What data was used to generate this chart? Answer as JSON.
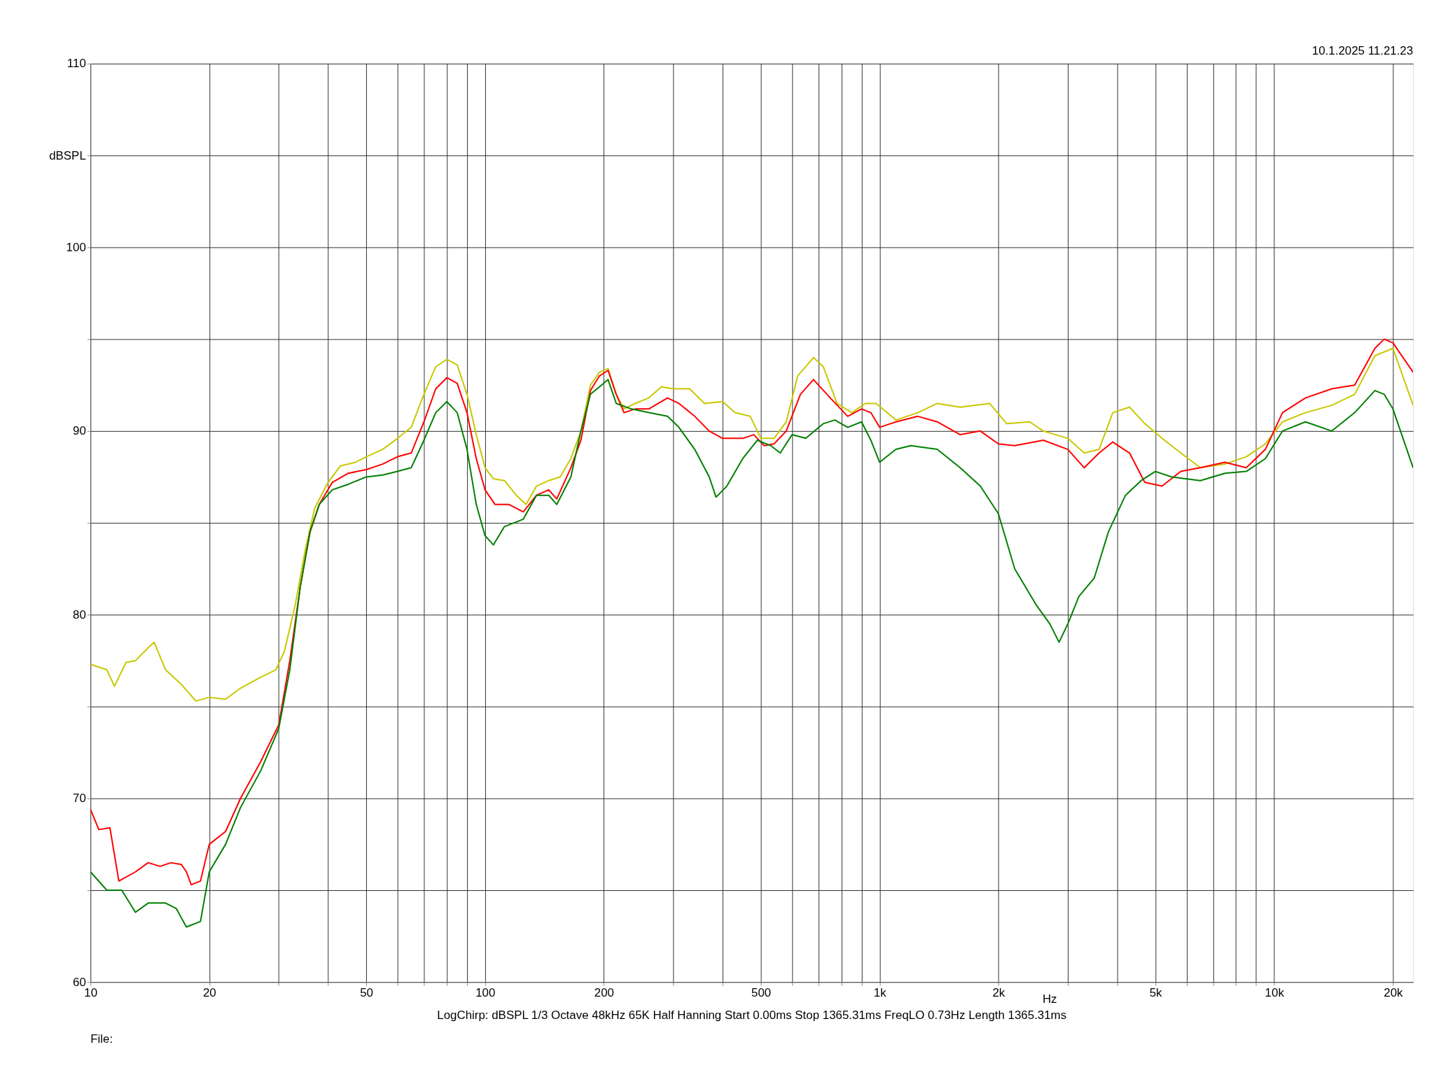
{
  "chart_data": {
    "type": "line",
    "xlabel": "Hz",
    "annotations": [
      "10.1.2025 11.21.23",
      "LogChirp:  dBSPL   1/3 Octave   48kHz   65K   Half Hanning   Start 0.00ms    Stop 1365.31ms    FreqLO 0.73Hz    Length 1365.31ms",
      "File:"
    ],
    "log": "x",
    "grid": true,
    "xlim": [
      10,
      22500
    ],
    "ylim": [
      60,
      110
    ],
    "xticks": [
      10,
      {
        "value": 20,
        "label": "20"
      },
      {
        "value": 30,
        "label": null
      },
      {
        "value": 40,
        "label": null
      },
      50,
      {
        "value": 60,
        "label": null
      },
      {
        "value": 70,
        "label": null
      },
      {
        "value": 80,
        "label": null
      },
      {
        "value": 90,
        "label": null
      },
      100,
      200,
      {
        "value": 300,
        "label": null
      },
      {
        "value": 400,
        "label": null
      },
      500,
      {
        "value": 600,
        "label": null
      },
      {
        "value": 700,
        "label": null
      },
      {
        "value": 800,
        "label": null
      },
      {
        "value": 900,
        "label": null
      },
      {
        "value": 1000,
        "label": "1k"
      },
      {
        "value": 2000,
        "label": "2k"
      },
      {
        "value": 3000,
        "label": null
      },
      {
        "value": 4000,
        "label": null
      },
      {
        "value": 5000,
        "label": "5k"
      },
      {
        "value": 6000,
        "label": null
      },
      {
        "value": 7000,
        "label": null
      },
      {
        "value": 8000,
        "label": null
      },
      {
        "value": 9000,
        "label": null
      },
      {
        "value": 10000,
        "label": "10k"
      },
      {
        "value": 20000,
        "label": "20k"
      }
    ],
    "yticks": [
      60,
      {
        "value": 65,
        "label": null
      },
      70,
      {
        "value": 75,
        "label": null
      },
      80,
      {
        "value": 85,
        "label": null
      },
      90,
      {
        "value": 95,
        "label": null
      },
      100,
      {
        "value": 105,
        "label": "dBSPL"
      },
      110
    ],
    "series": [
      {
        "color": "#c8c800",
        "x": [
          10,
          11,
          11.5,
          12.3,
          13,
          14,
          14.5,
          15.5,
          17,
          18.5,
          20,
          22,
          24,
          27,
          29.5,
          31,
          33,
          35,
          37,
          40,
          43,
          47,
          50,
          55,
          60,
          65,
          70,
          75,
          80,
          85,
          90,
          95,
          100,
          105,
          112,
          120,
          127,
          135,
          145,
          155,
          165,
          175,
          185,
          195,
          205,
          215,
          225,
          240,
          260,
          280,
          300,
          330,
          360,
          400,
          430,
          470,
          500,
          540,
          580,
          620,
          680,
          720,
          780,
          850,
          920,
          980,
          1100,
          1250,
          1400,
          1600,
          1900,
          2100,
          2400,
          2600,
          3000,
          3300,
          3600,
          3900,
          4300,
          4700,
          5200,
          5800,
          6500,
          7500,
          8500,
          9500,
          10500,
          12000,
          14000,
          16000,
          18000,
          20000,
          22500
        ],
        "values": [
          77.3,
          77.0,
          76.1,
          77.4,
          77.5,
          78.2,
          78.5,
          77.0,
          76.2,
          75.3,
          75.5,
          75.4,
          76.0,
          76.6,
          77.0,
          78.0,
          80.5,
          83.5,
          85.8,
          87.2,
          88.1,
          88.3,
          88.6,
          89.0,
          89.6,
          90.2,
          92.0,
          93.5,
          93.9,
          93.6,
          92.0,
          89.8,
          88.0,
          87.4,
          87.3,
          86.5,
          86.0,
          87.0,
          87.3,
          87.5,
          88.5,
          90.0,
          92.5,
          93.2,
          93.4,
          92.0,
          91.2,
          91.5,
          91.8,
          92.4,
          92.3,
          92.3,
          91.5,
          91.6,
          91.0,
          90.8,
          89.6,
          89.6,
          90.5,
          93.0,
          94.0,
          93.5,
          91.5,
          91.0,
          91.5,
          91.5,
          90.6,
          91.0,
          91.5,
          91.3,
          91.5,
          90.4,
          90.5,
          90.0,
          89.6,
          88.8,
          89.0,
          91.0,
          91.3,
          90.4,
          89.6,
          88.8,
          88.0,
          88.2,
          88.6,
          89.3,
          90.5,
          91.0,
          91.4,
          92.0,
          94.1,
          94.5,
          91.4
        ]
      },
      {
        "color": "#ff0000",
        "x": [
          10,
          10.5,
          11.2,
          11.8,
          13,
          14,
          15,
          16,
          17,
          17.5,
          18,
          19,
          20,
          22,
          24,
          27,
          30,
          32,
          34,
          36,
          38,
          41,
          45,
          50,
          55,
          60,
          65,
          70,
          75,
          80,
          85,
          90,
          95,
          100,
          106,
          115,
          125,
          135,
          145,
          152,
          165,
          175,
          185,
          195,
          205,
          215,
          225,
          240,
          260,
          290,
          310,
          340,
          370,
          400,
          450,
          480,
          510,
          540,
          580,
          630,
          680,
          750,
          830,
          900,
          950,
          1000,
          1100,
          1250,
          1400,
          1600,
          1800,
          2000,
          2200,
          2600,
          3000,
          3300,
          3600,
          3900,
          4300,
          4700,
          5200,
          5800,
          6500,
          7500,
          8500,
          9500,
          10500,
          12000,
          14000,
          16000,
          18000,
          19000,
          20000,
          22500
        ],
        "values": [
          69.4,
          68.3,
          68.4,
          65.5,
          66.0,
          66.5,
          66.3,
          66.5,
          66.4,
          66.0,
          65.3,
          65.5,
          67.5,
          68.2,
          70.0,
          72.0,
          74.0,
          77.5,
          81.5,
          84.5,
          86.0,
          87.2,
          87.7,
          87.9,
          88.2,
          88.6,
          88.8,
          90.5,
          92.3,
          92.9,
          92.6,
          91.0,
          88.5,
          86.8,
          86.0,
          86.0,
          85.6,
          86.5,
          86.8,
          86.3,
          88.0,
          89.5,
          92.2,
          93.0,
          93.3,
          92.0,
          91.0,
          91.2,
          91.2,
          91.8,
          91.5,
          90.8,
          90.0,
          89.6,
          89.6,
          89.8,
          89.2,
          89.3,
          90.0,
          92.0,
          92.8,
          91.8,
          90.8,
          91.2,
          91.0,
          90.2,
          90.5,
          90.8,
          90.5,
          89.8,
          90.0,
          89.3,
          89.2,
          89.5,
          89.0,
          88.0,
          88.8,
          89.4,
          88.8,
          87.2,
          87.0,
          87.8,
          88.0,
          88.3,
          88.0,
          89.0,
          91.0,
          91.8,
          92.3,
          92.5,
          94.5,
          95.0,
          94.8,
          93.2
        ]
      },
      {
        "color": "#007f00",
        "x": [
          10,
          11,
          12,
          13,
          14,
          15.5,
          16.5,
          17.5,
          19,
          20,
          22,
          24,
          27,
          30,
          32,
          34,
          36,
          38,
          41,
          45,
          50,
          55,
          60,
          65,
          70,
          75,
          80,
          85,
          90,
          95,
          100,
          105,
          112,
          125,
          135,
          145,
          152,
          165,
          175,
          185,
          195,
          205,
          215,
          235,
          260,
          290,
          310,
          340,
          370,
          385,
          410,
          450,
          490,
          530,
          560,
          600,
          650,
          720,
          770,
          830,
          900,
          950,
          1000,
          1100,
          1200,
          1400,
          1600,
          1800,
          2000,
          2200,
          2500,
          2700,
          2850,
          3000,
          3200,
          3500,
          3800,
          4200,
          4600,
          5000,
          5500,
          6500,
          7500,
          8500,
          9500,
          10500,
          12000,
          14000,
          16000,
          18000,
          19000,
          20000,
          22500
        ],
        "values": [
          66.0,
          65.0,
          65.0,
          63.8,
          64.3,
          64.3,
          64.0,
          63.0,
          63.3,
          66.0,
          67.5,
          69.5,
          71.5,
          73.8,
          77.0,
          81.5,
          84.5,
          86.0,
          86.8,
          87.1,
          87.5,
          87.6,
          87.8,
          88.0,
          89.5,
          91.0,
          91.6,
          91.0,
          89.0,
          86.0,
          84.3,
          83.8,
          84.8,
          85.2,
          86.5,
          86.5,
          86.0,
          87.5,
          90.0,
          92.0,
          92.4,
          92.8,
          91.5,
          91.2,
          91.0,
          90.8,
          90.2,
          89.0,
          87.5,
          86.4,
          87.0,
          88.5,
          89.5,
          89.2,
          88.8,
          89.8,
          89.6,
          90.4,
          90.6,
          90.2,
          90.5,
          89.5,
          88.3,
          89.0,
          89.2,
          89.0,
          88.0,
          87.0,
          85.5,
          82.5,
          80.5,
          79.5,
          78.5,
          79.5,
          81.0,
          82.0,
          84.5,
          86.5,
          87.3,
          87.8,
          87.5,
          87.3,
          87.7,
          87.8,
          88.5,
          90.0,
          90.5,
          90.0,
          91.0,
          92.2,
          92.0,
          91.2,
          88.0
        ]
      }
    ]
  }
}
